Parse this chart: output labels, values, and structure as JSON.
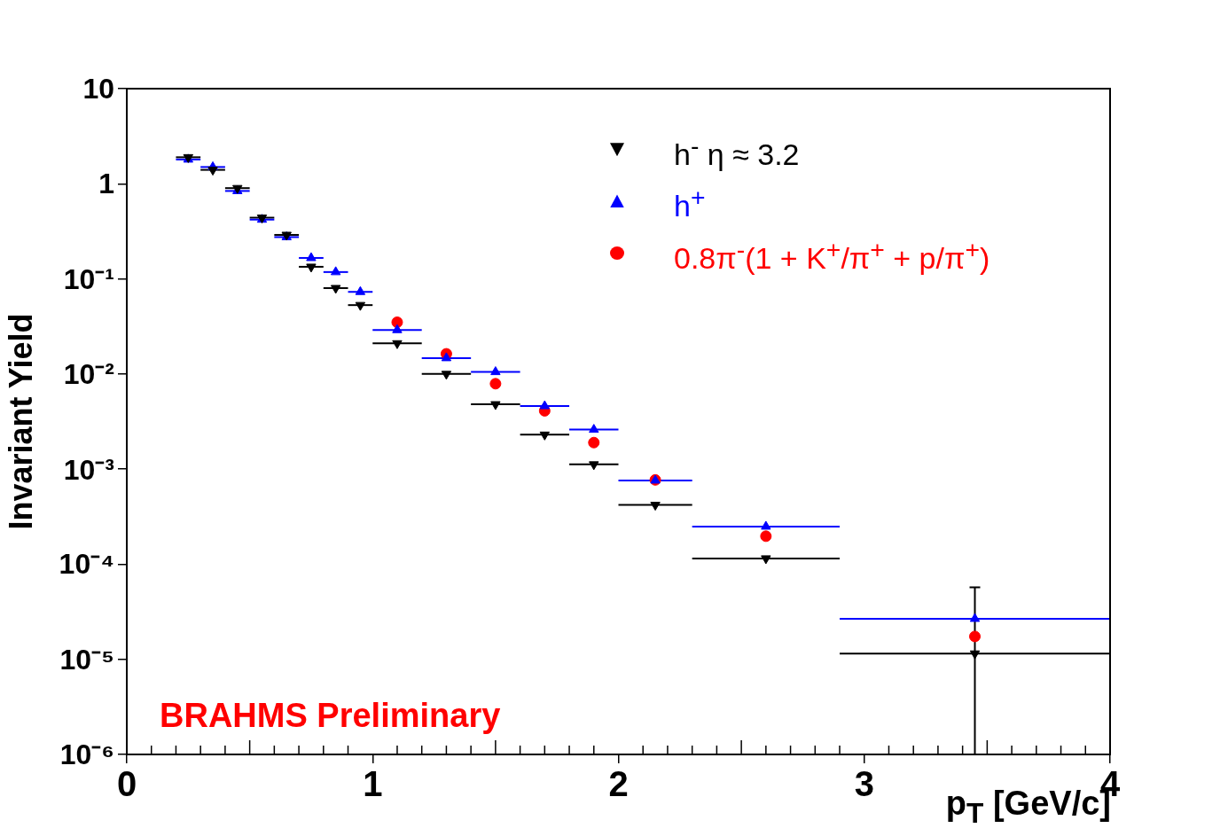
{
  "chart_data": {
    "type": "scatter",
    "xlabel": "p$_{T}$ [GeV/c]",
    "ylabel": "Invariant Yield",
    "x": [
      0.25,
      0.35,
      0.45,
      0.55,
      0.65,
      0.75,
      0.85,
      0.95,
      1.1,
      1.3,
      1.5,
      1.7,
      1.9,
      2.15,
      2.6,
      3.45
    ],
    "log": "y",
    "xlim": [
      0,
      4
    ],
    "xticks": [
      0,
      1,
      2,
      3,
      4
    ],
    "ylim": [
      1e-06,
      10
    ],
    "yticks": [
      {
        "value": 1e-06,
        "label": "10⁻⁶"
      },
      {
        "value": 1e-05,
        "label": "10⁻⁵"
      },
      {
        "value": 0.0001,
        "label": "10⁻⁴"
      },
      {
        "value": 0.001,
        "label": "10⁻³"
      },
      {
        "value": 0.01,
        "label": "10⁻²"
      },
      {
        "value": 0.1,
        "label": "10⁻¹"
      },
      1,
      10
    ],
    "grid": false,
    "legend": "top right",
    "series": [
      {
        "name": "h$^{-}$ η ≈ 3.2",
        "color": "#000000",
        "marker": "triangle",
        "values": [
          1.9,
          1.4,
          0.9,
          0.44,
          0.29,
          0.134,
          0.08,
          0.053,
          0.021,
          0.01,
          0.0048,
          0.0023,
          0.00112,
          0.00042,
          0.000115,
          1.15e-05
        ],
        "xerrors": [
          0.05,
          0.05,
          0.05,
          0.05,
          0.05,
          0.05,
          0.05,
          0.05,
          0.1,
          0.1,
          0.1,
          0.1,
          0.1,
          0.15,
          0.3,
          0.55
        ]
      },
      {
        "name": "h$^{+}$",
        "color": "#0000ff",
        "marker": "triangle",
        "values": [
          1.8,
          1.5,
          0.84,
          0.42,
          0.275,
          0.166,
          0.118,
          0.073,
          0.029,
          0.0147,
          0.0105,
          0.0046,
          0.0026,
          0.00076,
          0.000249,
          2.67e-05
        ],
        "xerrors": [
          0.05,
          0.05,
          0.05,
          0.05,
          0.05,
          0.05,
          0.05,
          0.05,
          0.1,
          0.1,
          0.1,
          0.1,
          0.1,
          0.15,
          0.3,
          0.55
        ],
        "errors": [
          null,
          null,
          null,
          null,
          null,
          null,
          null,
          null,
          null,
          null,
          null,
          null,
          null,
          null,
          null,
          [
            1e-06,
            5.7e-05
          ]
        ]
      },
      {
        "name": "0.8π$^{-}$(1 + K$^{+}$/π$^{+}$ + p/π$^{+}$)",
        "color": "#ff0000",
        "marker": "circle",
        "x": [
          1.1,
          1.3,
          1.5,
          1.7,
          1.9,
          2.15,
          2.6,
          3.45
        ],
        "values": [
          0.035,
          0.0163,
          0.0079,
          0.0041,
          0.0019,
          0.00077,
          0.000197,
          1.74e-05
        ]
      }
    ],
    "annotations": [
      "BRAHMS Preliminary"
    ]
  }
}
